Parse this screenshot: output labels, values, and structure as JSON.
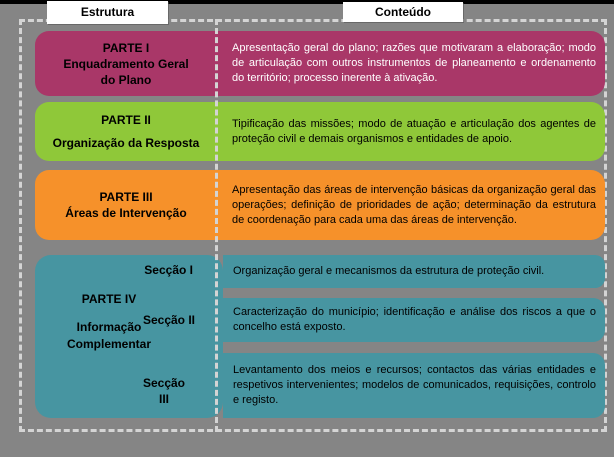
{
  "headers": {
    "estrutura": "Estrutura",
    "conteudo": "Conteúdo"
  },
  "rows": [
    {
      "title_lines": [
        "PARTE I",
        "Enquadramento Geral",
        "do Plano"
      ],
      "description": "Apresentação geral do plano; razões que motivaram a elaboração; modo de articulação com outros instrumentos de planeamento e ordenamento do território; processo inerente à ativação.",
      "color": "#A93768",
      "text_color": "#FFFFFF"
    },
    {
      "title_lines": [
        "PARTE II",
        "Organização da Resposta"
      ],
      "description": "Tipificação das missões; modo de atuação e articulação dos agentes de proteção civil e demais organismos e entidades de apoio.",
      "color": "#8FC839",
      "text_color": "#000000"
    },
    {
      "title_lines": [
        "PARTE III",
        "Áreas de Intervenção"
      ],
      "description": "Apresentação das áreas de intervenção básicas da organização geral das operações; definição de prioridades de ação; determinação da estrutura de coordenação para cada uma das áreas de intervenção.",
      "color": "#F6912A",
      "text_color": "#000000"
    }
  ],
  "parte4": {
    "color": "#4795A1",
    "title_lines": [
      "PARTE IV",
      "Informação",
      "Complementar"
    ],
    "sections": [
      {
        "label": "Secção I",
        "description": "Organização geral e mecanismos da estrutura de proteção civil."
      },
      {
        "label": "Secção II",
        "description": "Caracterização do município; identificação e análise dos riscos a que o concelho está exposto."
      },
      {
        "label_line1": "Secção",
        "label_line2": "III",
        "description": "Levantamento dos meios e recursos; contactos das várias entidades e respetivos intervenientes; modelos de comunicados, requisições, controlo e registo."
      }
    ]
  },
  "palette": {
    "background": "#858585",
    "frame_dash": "#D4D4D4",
    "top_bar": "#000000",
    "label_bg": "#FFFFFF"
  }
}
